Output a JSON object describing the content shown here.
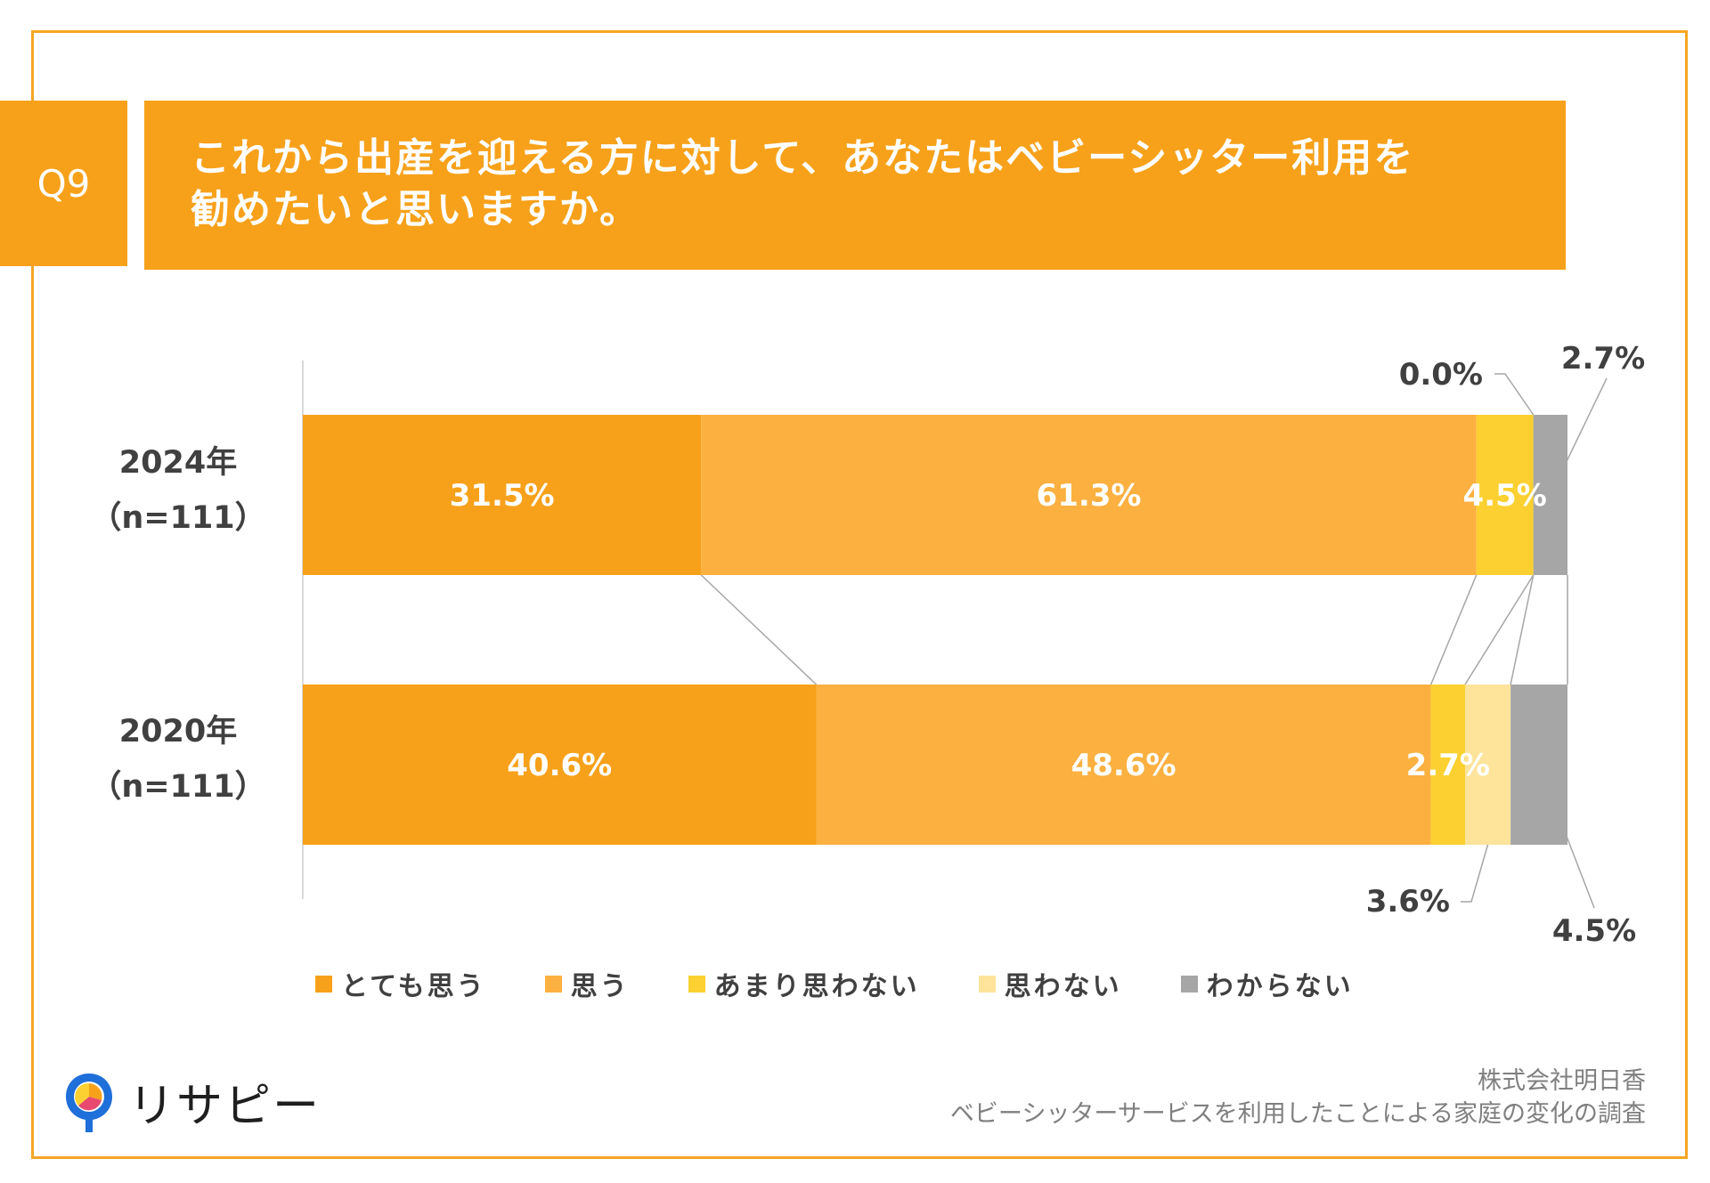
{
  "header": {
    "badge": "Q9",
    "title": "これから出産を迎える方に対して、あなたはベビーシッター利用を\n勧めたいと思いますか。"
  },
  "chart_data": {
    "type": "bar",
    "orientation": "horizontal",
    "stacked": true,
    "categories": [
      {
        "year": "2024年",
        "n": "（n=111）"
      },
      {
        "year": "2020年",
        "n": "（n=111）"
      }
    ],
    "series": [
      {
        "name": "とても思う",
        "color": "#f7a11a",
        "values": [
          31.5,
          40.6
        ],
        "labels": [
          "31.5%",
          "40.6%"
        ]
      },
      {
        "name": "思う",
        "color": "#fbb040",
        "values": [
          61.3,
          48.6
        ],
        "labels": [
          "61.3%",
          "48.6%"
        ]
      },
      {
        "name": "あまり思わない",
        "color": "#fcd030",
        "values": [
          4.5,
          2.7
        ],
        "labels": [
          "4.5%",
          "2.7%"
        ]
      },
      {
        "name": "思わない",
        "color": "#fde49a",
        "values": [
          0.0,
          3.6
        ],
        "labels": [
          "0.0%",
          "3.6%"
        ]
      },
      {
        "name": "わからない",
        "color": "#a6a6a6",
        "values": [
          2.7,
          4.5
        ],
        "labels": [
          "2.7%",
          "4.5%"
        ]
      }
    ],
    "xlim": [
      0,
      100
    ],
    "legend_position": "bottom"
  },
  "logo": {
    "text": "リサピー"
  },
  "footer": {
    "line1": "株式会社明日香",
    "line2": "ベビーシッターサービスを利用したことによる家庭の変化の調査"
  }
}
